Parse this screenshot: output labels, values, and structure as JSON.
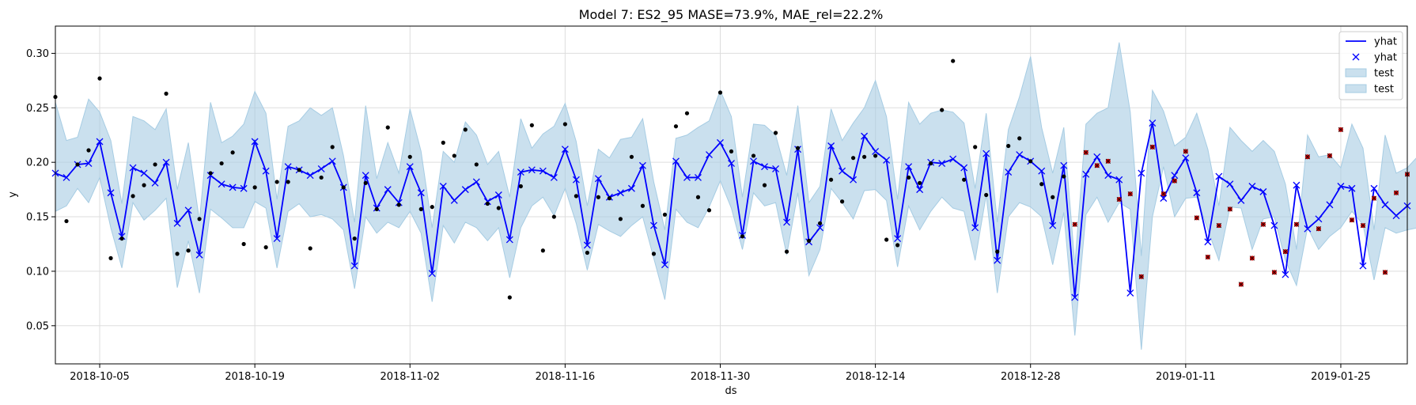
{
  "chart_data": {
    "type": "line",
    "title": "Model 7: ES2_95 MASE=73.9%, MAE_rel=22.2%",
    "xlabel": "ds",
    "ylabel": "y",
    "x_tick_labels": [
      "2018-10-05",
      "2018-10-19",
      "2018-11-02",
      "2018-11-16",
      "2018-11-30",
      "2018-12-14",
      "2018-12-28",
      "2019-01-11",
      "2019-01-25"
    ],
    "y_tick_labels": [
      "0.05",
      "0.10",
      "0.15",
      "0.20",
      "0.25",
      "0.30"
    ],
    "xlim": [
      "2018-10-01",
      "2019-01-31"
    ],
    "ylim": [
      0.015,
      0.325
    ],
    "grid": true,
    "legend_position": "top-right",
    "legend": [
      "yhat",
      "yhat",
      "test",
      "test"
    ],
    "colors": {
      "yhat": "#0000ff",
      "band": "#a6cce3",
      "actual": "#000000",
      "test_actual": "#cc0000"
    },
    "yhat": [
      0.19,
      0.186,
      0.198,
      0.199,
      0.219,
      0.172,
      0.132,
      0.195,
      0.19,
      0.181,
      0.2,
      0.144,
      0.156,
      0.115,
      0.188,
      0.18,
      0.177,
      0.176,
      0.219,
      0.192,
      0.13,
      0.196,
      0.193,
      0.188,
      0.194,
      0.201,
      0.177,
      0.105,
      0.188,
      0.158,
      0.175,
      0.163,
      0.196,
      0.172,
      0.098,
      0.178,
      0.165,
      0.175,
      0.182,
      0.164,
      0.17,
      0.129,
      0.191,
      0.193,
      0.192,
      0.186,
      0.212,
      0.184,
      0.124,
      0.185,
      0.168,
      0.172,
      0.176,
      0.197,
      0.142,
      0.106,
      0.201,
      0.186,
      0.186,
      0.207,
      0.218,
      0.199,
      0.133,
      0.201,
      0.196,
      0.194,
      0.145,
      0.212,
      0.127,
      0.14,
      0.215,
      0.192,
      0.184,
      0.224,
      0.21,
      0.202,
      0.13,
      0.196,
      0.175,
      0.2,
      0.199,
      0.203,
      0.195,
      0.14,
      0.208,
      0.11,
      0.191,
      0.207,
      0.201,
      0.192,
      0.142,
      0.197,
      0.076,
      0.189,
      0.205,
      0.188,
      0.184,
      0.08,
      0.19,
      0.236,
      0.167,
      0.188,
      0.204,
      0.172,
      0.127,
      0.187,
      0.18,
      0.165,
      0.178,
      0.173,
      0.142,
      0.097,
      0.179,
      0.139,
      0.148,
      0.161,
      0.178,
      0.176,
      0.105,
      0.176,
      0.161,
      0.151,
      0.16
    ],
    "band_upper": [
      0.255,
      0.22,
      0.223,
      0.258,
      0.246,
      0.22,
      0.162,
      0.242,
      0.238,
      0.23,
      0.249,
      0.175,
      0.218,
      0.146,
      0.255,
      0.218,
      0.224,
      0.235,
      0.265,
      0.245,
      0.166,
      0.233,
      0.238,
      0.25,
      0.243,
      0.25,
      0.206,
      0.145,
      0.252,
      0.185,
      0.218,
      0.19,
      0.249,
      0.21,
      0.14,
      0.21,
      0.2,
      0.237,
      0.225,
      0.198,
      0.21,
      0.168,
      0.24,
      0.213,
      0.226,
      0.233,
      0.254,
      0.219,
      0.16,
      0.212,
      0.204,
      0.221,
      0.223,
      0.24,
      0.182,
      0.138,
      0.222,
      0.225,
      0.232,
      0.238,
      0.266,
      0.242,
      0.168,
      0.235,
      0.234,
      0.225,
      0.188,
      0.252,
      0.163,
      0.178,
      0.249,
      0.22,
      0.236,
      0.25,
      0.275,
      0.242,
      0.166,
      0.255,
      0.235,
      0.245,
      0.248,
      0.246,
      0.236,
      0.176,
      0.245,
      0.145,
      0.23,
      0.26,
      0.297,
      0.232,
      0.19,
      0.232,
      0.106,
      0.235,
      0.245,
      0.25,
      0.31,
      0.246,
      0.114,
      0.266,
      0.247,
      0.215,
      0.223,
      0.245,
      0.212,
      0.16,
      0.232,
      0.22,
      0.21,
      0.22,
      0.21,
      0.18,
      0.12,
      0.225,
      0.205,
      0.207,
      0.195,
      0.235,
      0.213,
      0.138,
      0.225,
      0.19,
      0.195,
      0.206
    ],
    "band_lower": [
      0.155,
      0.16,
      0.176,
      0.163,
      0.186,
      0.14,
      0.103,
      0.163,
      0.147,
      0.156,
      0.167,
      0.085,
      0.128,
      0.08,
      0.157,
      0.149,
      0.14,
      0.14,
      0.164,
      0.158,
      0.103,
      0.155,
      0.162,
      0.15,
      0.152,
      0.148,
      0.138,
      0.084,
      0.15,
      0.135,
      0.145,
      0.14,
      0.155,
      0.135,
      0.072,
      0.142,
      0.126,
      0.145,
      0.14,
      0.128,
      0.14,
      0.094,
      0.14,
      0.16,
      0.168,
      0.151,
      0.176,
      0.144,
      0.101,
      0.143,
      0.137,
      0.132,
      0.142,
      0.15,
      0.112,
      0.074,
      0.157,
      0.145,
      0.14,
      0.159,
      0.183,
      0.158,
      0.12,
      0.172,
      0.16,
      0.163,
      0.115,
      0.172,
      0.096,
      0.12,
      0.176,
      0.163,
      0.148,
      0.174,
      0.175,
      0.165,
      0.104,
      0.16,
      0.138,
      0.155,
      0.168,
      0.158,
      0.155,
      0.11,
      0.17,
      0.08,
      0.15,
      0.163,
      0.159,
      0.15,
      0.106,
      0.154,
      0.041,
      0.152,
      0.168,
      0.145,
      0.163,
      0.157,
      0.028,
      0.15,
      0.196,
      0.15,
      0.167,
      0.168,
      0.138,
      0.11,
      0.159,
      0.158,
      0.12,
      0.148,
      0.15,
      0.11,
      0.087,
      0.14,
      0.12,
      0.132,
      0.14,
      0.155,
      0.143,
      0.092,
      0.14,
      0.135,
      0.138,
      0.14
    ],
    "actual": [
      0.26,
      0.146,
      0.198,
      0.211,
      0.277,
      0.112,
      0.13,
      0.169,
      0.179,
      0.198,
      0.263,
      0.116,
      0.119,
      0.148,
      0.19,
      0.199,
      0.209,
      0.125,
      0.177,
      0.122,
      0.182,
      0.182,
      0.193,
      0.121,
      0.186,
      0.214,
      0.177,
      0.13,
      0.181,
      0.157,
      0.232,
      0.161,
      0.205,
      0.157,
      0.159,
      0.218,
      0.206,
      0.23,
      0.198,
      0.162,
      0.158,
      0.076,
      0.178,
      0.234,
      0.119,
      0.15,
      0.235,
      0.169,
      0.117,
      0.168,
      0.167,
      0.148,
      0.205,
      0.16,
      0.116,
      0.152,
      0.233,
      0.245,
      0.168,
      0.156,
      0.264,
      0.21,
      0.132,
      0.206,
      0.179,
      0.227,
      0.118,
      0.213,
      0.128,
      0.144,
      0.184,
      0.164,
      0.204,
      0.205,
      0.206,
      0.129,
      0.124,
      0.186,
      0.181,
      0.199,
      0.248,
      0.293,
      0.184,
      0.214,
      0.17,
      0.118,
      0.215,
      0.222,
      0.201,
      0.18,
      0.168,
      0.187
    ],
    "test_actual": [
      0.143,
      0.209,
      0.197,
      0.201,
      0.166,
      0.171,
      0.095,
      0.214,
      0.171,
      0.183,
      0.21,
      0.149,
      0.113,
      0.142,
      0.157,
      0.088,
      0.112,
      0.143,
      0.099,
      0.118,
      0.143,
      0.205,
      0.139,
      0.206,
      0.23,
      0.147,
      0.142,
      0.167,
      0.099,
      0.172,
      0.189
    ]
  }
}
